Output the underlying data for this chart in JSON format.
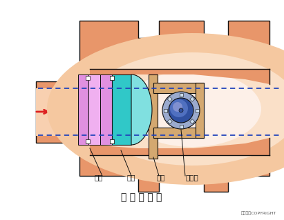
{
  "title": "凸 轮 拨 曲 阀",
  "copyright": "东方仿真COPYRIGHT",
  "labels": [
    "阀座",
    "阀芯",
    "拨臂",
    "旋转轴"
  ],
  "bg_color": "#ffffff",
  "body_color": "#E8966A",
  "body_inner": "#F0B080",
  "glow1": "#F5C8A0",
  "glow2": "#FAE0C8",
  "glow3": "#FDF0E8",
  "valve_seat_color": "#E090E0",
  "valve_seat_light": "#F0B0F0",
  "valve_core_color": "#30C8C8",
  "valve_core_light": "#80E0E0",
  "arm_color": "#D4A870",
  "arm_light": "#E8C898",
  "rotor_dark": "#3050A0",
  "rotor_mid": "#5070C0",
  "rotor_light": "#8090D0",
  "blue_dot_color": "#2244BB",
  "red_arrow_color": "#DD2222",
  "black": "#111111",
  "pipe_inner": "#F8D0B0"
}
